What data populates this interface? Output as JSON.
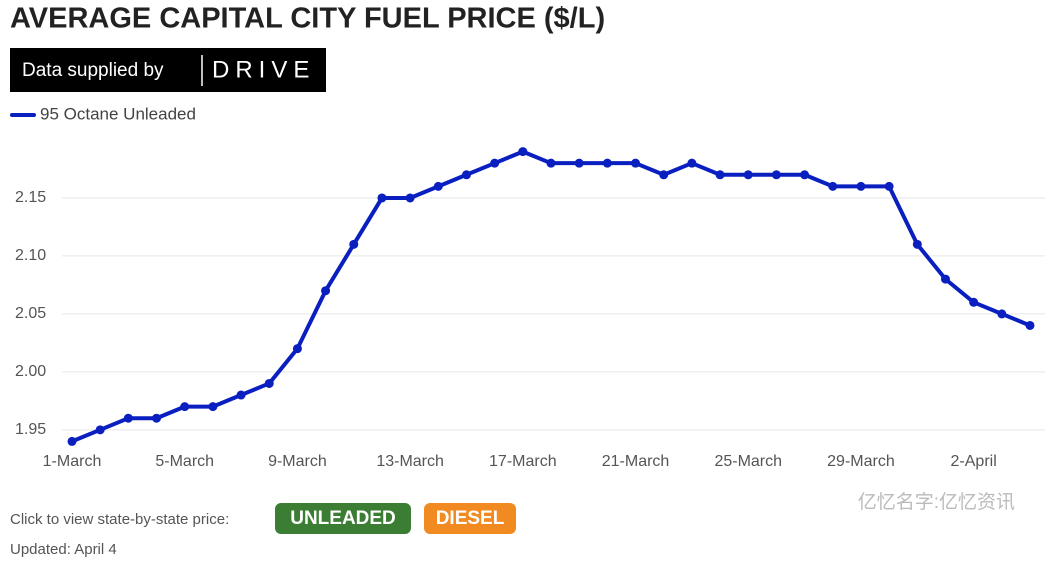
{
  "header": {
    "title": "AVERAGE CAPITAL CITY FUEL PRICE ($/L)",
    "supplied_by": "Data supplied by",
    "brand": "DRIVE"
  },
  "chart_data": {
    "type": "line",
    "categories": [
      "1-March",
      null,
      null,
      null,
      "5-March",
      null,
      null,
      null,
      "9-March",
      null,
      null,
      null,
      "13-March",
      null,
      null,
      null,
      "17-March",
      null,
      null,
      null,
      "21-March",
      null,
      null,
      null,
      "25-March",
      null,
      null,
      null,
      "29-March",
      null,
      null,
      null,
      "2-April",
      null,
      null
    ],
    "series": [
      {
        "name": "95 Octane Unleaded",
        "color": "#0a1fc0",
        "values": [
          1.94,
          1.95,
          1.96,
          1.96,
          1.97,
          1.97,
          1.98,
          1.99,
          2.02,
          2.07,
          2.11,
          2.15,
          2.15,
          2.16,
          2.17,
          2.18,
          2.19,
          2.18,
          2.18,
          2.18,
          2.18,
          2.17,
          2.18,
          2.17,
          2.17,
          2.17,
          2.17,
          2.16,
          2.16,
          2.16,
          2.11,
          2.08,
          2.06,
          2.05,
          2.04
        ]
      }
    ],
    "ylim": [
      1.93,
      2.2
    ],
    "yticks": [
      1.95,
      {
        "value": 2.0,
        "label": "2.00"
      },
      2.05,
      {
        "value": 2.1,
        "label": "2.10"
      },
      2.15
    ],
    "grid": true,
    "legend": "top-left"
  },
  "footer": {
    "prompt": "Click to view state-by-state price:",
    "buttons": [
      "UNLEADED",
      "DIESEL"
    ],
    "updated": "Updated: April 4",
    "watermark": "亿忆名字:亿忆资讯"
  }
}
